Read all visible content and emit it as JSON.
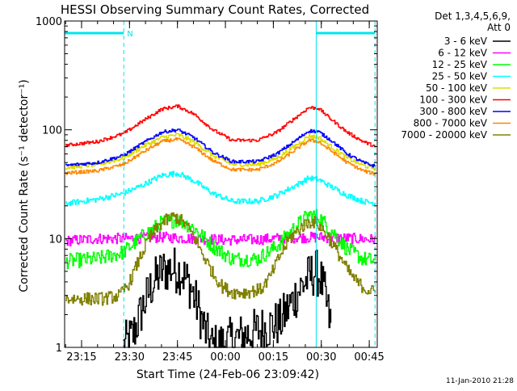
{
  "chart_data": {
    "type": "line",
    "title": "HESSI Observing Summary Count Rates, Corrected",
    "xlabel": "Start Time (24-Feb-06 23:09:42)",
    "ylabel": "Corrected Count Rate (s⁻¹ detector⁻¹)",
    "footer": "11-Jan-2010 21:28",
    "yscale": "log",
    "ylim": [
      1,
      1000
    ],
    "xlim_min_after_2300": [
      9.7,
      107.5
    ],
    "x_ticks": [
      {
        "t": 15,
        "label": "23:15"
      },
      {
        "t": 30,
        "label": "23:30"
      },
      {
        "t": 45,
        "label": "23:45"
      },
      {
        "t": 60,
        "label": "00:00"
      },
      {
        "t": 75,
        "label": "00:15"
      },
      {
        "t": 90,
        "label": "00:30"
      },
      {
        "t": 105,
        "label": "00:45"
      }
    ],
    "y_ticks": [
      {
        "v": 1,
        "label": "1"
      },
      {
        "v": 10,
        "label": "10"
      },
      {
        "v": 100,
        "label": "100"
      },
      {
        "v": 1000,
        "label": "1000"
      }
    ],
    "legend": {
      "placement": "right",
      "header": [
        "Det 1,3,4,5,6,9,",
        "Att 0"
      ]
    },
    "annotations": {
      "night_marker": "N",
      "vertical_lines_min": [
        9.7,
        28.2,
        88.4,
        106.8
      ],
      "night_bar_min": [
        [
          9.7,
          28.2
        ],
        [
          88.4,
          106.8
        ]
      ]
    },
    "series": [
      {
        "name": "3 - 6 keV",
        "color": "#000000",
        "x": [
          28,
          31,
          34,
          37,
          40,
          43,
          46,
          49,
          52,
          54,
          56,
          77,
          80,
          83,
          86,
          88,
          89.5,
          91,
          93
        ],
        "y": [
          1.0,
          1.3,
          2.3,
          3.8,
          5.0,
          5.3,
          5.0,
          3.6,
          2.0,
          1.3,
          1.0,
          1.7,
          2.4,
          3.4,
          4.4,
          5.0,
          4.5,
          3.0,
          1.5
        ]
      },
      {
        "name": "6 - 12 keV",
        "color": "#ff00ff",
        "x": [
          10,
          20,
          30,
          40,
          50,
          60,
          70,
          80,
          90,
          100,
          107
        ],
        "y": [
          9.5,
          10.0,
          10.0,
          10.3,
          10.0,
          9.7,
          9.8,
          10.2,
          10.3,
          10.0,
          9.8
        ]
      },
      {
        "name": "12 - 25 keV",
        "color": "#00ff00",
        "x": [
          10,
          20,
          28,
          34,
          40,
          45,
          50,
          56,
          62,
          70,
          76,
          82,
          86,
          89,
          93,
          98,
          103,
          107
        ],
        "y": [
          6.2,
          6.5,
          7.5,
          10.5,
          14.0,
          15.0,
          12.5,
          8.5,
          6.5,
          6.5,
          8.5,
          13.0,
          16.5,
          16.0,
          12.0,
          8.0,
          6.5,
          6.2
        ]
      },
      {
        "name": "25 - 50 keV",
        "color": "#00ffff",
        "x": [
          10,
          20,
          28,
          34,
          40,
          45,
          50,
          56,
          62,
          70,
          76,
          82,
          86,
          89,
          93,
          98,
          103,
          107
        ],
        "y": [
          21,
          23,
          26,
          31,
          38,
          40,
          34,
          26,
          22,
          22,
          25,
          31,
          36,
          35,
          30,
          25,
          22,
          21
        ]
      },
      {
        "name": "50 - 100 keV",
        "color": "#dddd00",
        "x": [
          10,
          20,
          28,
          34,
          40,
          45,
          50,
          56,
          62,
          70,
          76,
          82,
          86,
          89,
          93,
          98,
          103,
          107
        ],
        "y": [
          45,
          48,
          55,
          70,
          85,
          90,
          78,
          58,
          48,
          48,
          55,
          72,
          88,
          85,
          70,
          55,
          47,
          44
        ]
      },
      {
        "name": "100 - 300 keV",
        "color": "#ff0000",
        "x": [
          10,
          20,
          28,
          34,
          40,
          45,
          50,
          56,
          62,
          70,
          76,
          82,
          86,
          89,
          93,
          98,
          103,
          107
        ],
        "y": [
          72,
          78,
          92,
          120,
          155,
          165,
          140,
          100,
          80,
          80,
          95,
          130,
          160,
          158,
          125,
          95,
          78,
          70
        ]
      },
      {
        "name": "300 - 800 keV",
        "color": "#0000ff",
        "x": [
          10,
          20,
          28,
          34,
          40,
          45,
          50,
          56,
          62,
          70,
          76,
          82,
          86,
          89,
          93,
          98,
          103,
          107
        ],
        "y": [
          47,
          50,
          58,
          75,
          95,
          100,
          85,
          62,
          51,
          51,
          60,
          80,
          98,
          96,
          80,
          60,
          50,
          46
        ]
      },
      {
        "name": "800 - 7000 keV",
        "color": "#ff8800",
        "x": [
          10,
          20,
          28,
          34,
          40,
          45,
          50,
          56,
          62,
          70,
          76,
          82,
          86,
          89,
          93,
          98,
          103,
          107
        ],
        "y": [
          40,
          42,
          48,
          62,
          78,
          82,
          70,
          52,
          43,
          43,
          50,
          66,
          80,
          78,
          64,
          50,
          42,
          39
        ]
      },
      {
        "name": "7000 - 20000 keV",
        "color": "#808000",
        "x": [
          10,
          22,
          27,
          30,
          33,
          36,
          40,
          44,
          47,
          50,
          53,
          56,
          59,
          62,
          66,
          71,
          74,
          77,
          80,
          84,
          87,
          89,
          92,
          95,
          98,
          101,
          104,
          107
        ],
        "y": [
          2.8,
          2.8,
          3.0,
          4.0,
          6.5,
          10.0,
          14.0,
          16.0,
          14.0,
          10.5,
          7.0,
          4.8,
          3.6,
          3.2,
          3.2,
          3.4,
          4.5,
          7.0,
          10.0,
          13.0,
          14.5,
          13.5,
          10.5,
          7.5,
          5.2,
          4.0,
          3.4,
          3.2
        ]
      }
    ]
  }
}
